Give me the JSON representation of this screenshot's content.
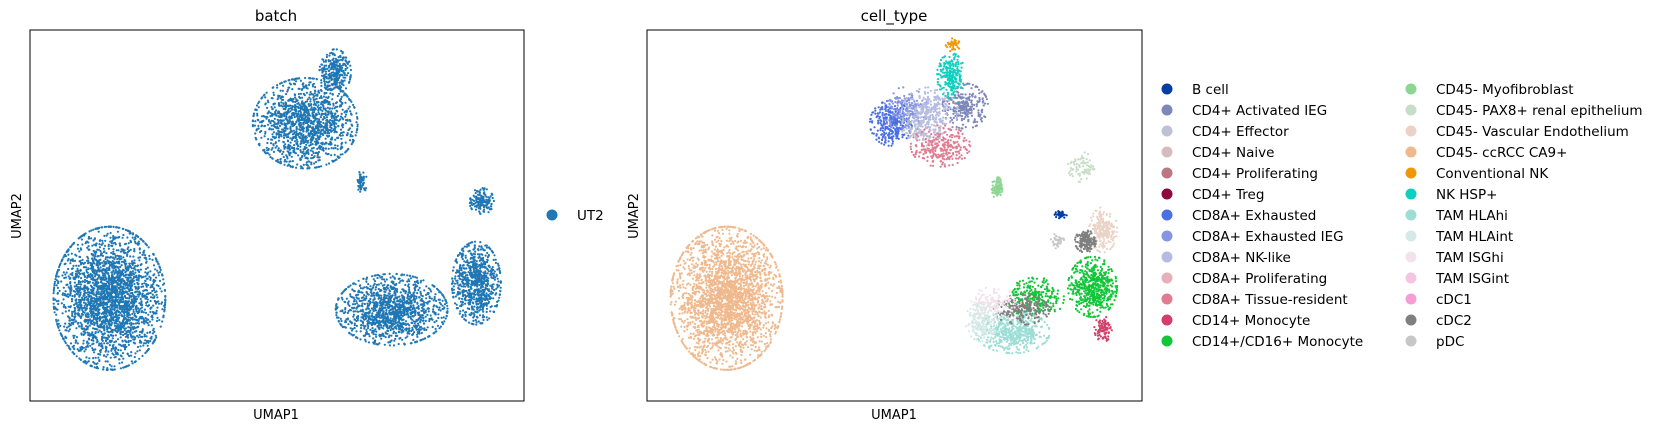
{
  "chart_data": [
    {
      "type": "scatter",
      "title": "batch",
      "xlabel": "UMAP1",
      "ylabel": "UMAP2",
      "xticks": [],
      "yticks": [],
      "legend": {
        "position": "right",
        "entries": [
          {
            "label": "UT2",
            "color": "#1f77b4"
          }
        ]
      },
      "clusters": [
        {
          "name": "UT2",
          "cx": -7.5,
          "cy": -4.6,
          "rx": 3.2,
          "ry": 3.8,
          "n": 2600
        },
        {
          "name": "UT2",
          "cx": 3.6,
          "cy": 4.6,
          "rx": 3.0,
          "ry": 2.4,
          "n": 1400
        },
        {
          "name": "UT2",
          "cx": 5.3,
          "cy": 7.3,
          "rx": 0.9,
          "ry": 1.2,
          "n": 300
        },
        {
          "name": "UT2",
          "cx": 8.5,
          "cy": -5.2,
          "rx": 3.2,
          "ry": 1.9,
          "n": 1300
        },
        {
          "name": "UT2",
          "cx": 13.3,
          "cy": -3.8,
          "rx": 1.4,
          "ry": 2.2,
          "n": 800
        },
        {
          "name": "UT2",
          "cx": 13.6,
          "cy": 0.5,
          "rx": 0.7,
          "ry": 0.7,
          "n": 150
        },
        {
          "name": "UT2",
          "cx": 6.8,
          "cy": 1.5,
          "rx": 0.3,
          "ry": 0.6,
          "n": 50
        }
      ]
    },
    {
      "type": "scatter",
      "title": "cell_type",
      "xlabel": "UMAP1",
      "ylabel": "UMAP2",
      "xticks": [],
      "yticks": [],
      "legend": {
        "position": "right",
        "columns": 2,
        "entries": [
          {
            "label": "B cell",
            "color": "#023fa5"
          },
          {
            "label": "CD4+ Activated IEG",
            "color": "#7d87b9"
          },
          {
            "label": "CD4+ Effector",
            "color": "#bec1d4"
          },
          {
            "label": "CD4+ Naive",
            "color": "#d6bcc0"
          },
          {
            "label": "CD4+ Proliferating",
            "color": "#bb7784"
          },
          {
            "label": "CD4+ Treg",
            "color": "#8e063b"
          },
          {
            "label": "CD8A+ Exhausted",
            "color": "#4a6fe3"
          },
          {
            "label": "CD8A+ Exhausted IEG",
            "color": "#8595e1"
          },
          {
            "label": "CD8A+ NK-like",
            "color": "#b5bbe3"
          },
          {
            "label": "CD8A+ Proliferating",
            "color": "#e6afb9"
          },
          {
            "label": "CD8A+ Tissue-resident",
            "color": "#e07b91"
          },
          {
            "label": "CD14+ Monocyte",
            "color": "#d33f6a"
          },
          {
            "label": "CD14+/CD16+ Monocyte",
            "color": "#11c638"
          },
          {
            "label": "CD45- Myofibroblast",
            "color": "#8dd593"
          },
          {
            "label": "CD45- PAX8+ renal epithelium",
            "color": "#c6dec7"
          },
          {
            "label": "CD45- Vascular Endothelium",
            "color": "#ead3c6"
          },
          {
            "label": "CD45- ccRCC CA9+",
            "color": "#f0b98d"
          },
          {
            "label": "Conventional NK",
            "color": "#ef9708"
          },
          {
            "label": "NK HSP+",
            "color": "#0fcfc0"
          },
          {
            "label": "TAM HLAhi",
            "color": "#9cded6"
          },
          {
            "label": "TAM HLAint",
            "color": "#d5eae7"
          },
          {
            "label": "TAM ISGhi",
            "color": "#f3e1eb"
          },
          {
            "label": "TAM ISGint",
            "color": "#f6c4e1"
          },
          {
            "label": "cDC1",
            "color": "#f79cd4"
          },
          {
            "label": "cDC2",
            "color": "#7f7f7f"
          },
          {
            "label": "pDC",
            "color": "#c7c7c7"
          }
        ]
      },
      "clusters": [
        {
          "name": "CD45- ccRCC CA9+",
          "cx": -7.5,
          "cy": -4.6,
          "rx": 3.2,
          "ry": 3.8,
          "n": 2600
        },
        {
          "name": "CD8A+ Exhausted",
          "cx": 1.8,
          "cy": 4.6,
          "rx": 1.2,
          "ry": 1.2,
          "n": 300
        },
        {
          "name": "CD8A+ Exhausted IEG",
          "cx": 2.6,
          "cy": 5.3,
          "rx": 1.3,
          "ry": 1.2,
          "n": 200
        },
        {
          "name": "CD4+ Activated IEG",
          "cx": 6.0,
          "cy": 5.5,
          "rx": 1.3,
          "ry": 1.2,
          "n": 250
        },
        {
          "name": "CD8A+ NK-like",
          "cx": 4.0,
          "cy": 5.2,
          "rx": 1.6,
          "ry": 1.3,
          "n": 250
        },
        {
          "name": "CD8A+ Tissue-resident",
          "cx": 4.6,
          "cy": 3.4,
          "rx": 1.7,
          "ry": 1.1,
          "n": 250
        },
        {
          "name": "CD4+ Effector",
          "cx": 3.6,
          "cy": 4.4,
          "rx": 1.2,
          "ry": 1.0,
          "n": 120
        },
        {
          "name": "NK HSP+",
          "cx": 5.2,
          "cy": 7.1,
          "rx": 0.8,
          "ry": 1.2,
          "n": 220
        },
        {
          "name": "Conventional NK",
          "cx": 5.3,
          "cy": 8.7,
          "rx": 0.4,
          "ry": 0.4,
          "n": 40
        },
        {
          "name": "CD45- Myofibroblast",
          "cx": 7.8,
          "cy": 1.2,
          "rx": 0.3,
          "ry": 0.6,
          "n": 90
        },
        {
          "name": "B cell",
          "cx": 11.4,
          "cy": -0.2,
          "rx": 0.35,
          "ry": 0.2,
          "n": 40
        },
        {
          "name": "CD45- PAX8+ renal epithelium",
          "cx": 12.6,
          "cy": 2.3,
          "rx": 0.8,
          "ry": 0.8,
          "n": 80
        },
        {
          "name": "CD45- Vascular Endothelium",
          "cx": 13.8,
          "cy": -1.0,
          "rx": 0.8,
          "ry": 1.2,
          "n": 220
        },
        {
          "name": "cDC2",
          "cx": 12.8,
          "cy": -1.6,
          "rx": 0.6,
          "ry": 0.6,
          "n": 150
        },
        {
          "name": "CD14+/CD16+ Monocyte",
          "cx": 13.2,
          "cy": -4.0,
          "rx": 1.4,
          "ry": 1.6,
          "n": 550
        },
        {
          "name": "CD14+/CD16+ Monocyte",
          "cx": 10.0,
          "cy": -4.6,
          "rx": 1.6,
          "ry": 1.1,
          "n": 250
        },
        {
          "name": "TAM HLAhi",
          "cx": 8.7,
          "cy": -6.4,
          "rx": 2.1,
          "ry": 1.1,
          "n": 500
        },
        {
          "name": "cDC2",
          "cx": 9.2,
          "cy": -5.2,
          "rx": 1.6,
          "ry": 0.8,
          "n": 220
        },
        {
          "name": "TAM HLAint",
          "cx": 7.0,
          "cy": -5.8,
          "rx": 1.0,
          "ry": 1.1,
          "n": 200
        },
        {
          "name": "TAM ISGhi",
          "cx": 7.6,
          "cy": -4.8,
          "rx": 1.3,
          "ry": 0.8,
          "n": 120
        },
        {
          "name": "CD14+ Monocyte",
          "cx": 13.8,
          "cy": -6.2,
          "rx": 0.5,
          "ry": 0.7,
          "n": 90
        },
        {
          "name": "pDC",
          "cx": 11.2,
          "cy": -1.6,
          "rx": 0.4,
          "ry": 0.4,
          "n": 40
        }
      ]
    }
  ]
}
